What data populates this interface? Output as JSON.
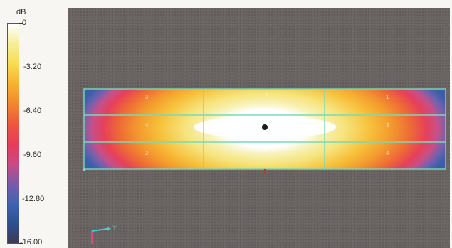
{
  "legend": {
    "unit": "dB",
    "ticks": [
      "0",
      "-3.20",
      "-6.40",
      "-9.60",
      "-12.80",
      "-16.00"
    ],
    "colors": [
      "#ffffff",
      "#f5ef99",
      "#f8dc52",
      "#f7b330",
      "#f28a2e",
      "#ee5a3b",
      "#e63c5a",
      "#c94a86",
      "#7a5ba8",
      "#3f64b3",
      "#2f4f8e",
      "#3c3b55"
    ]
  },
  "viewport": {
    "background": "#6a6463",
    "grid_color": "#7ad9b3",
    "zone_labels": [
      "3",
      "2",
      "1",
      "4",
      "3",
      "2",
      "1",
      "4"
    ],
    "axis_label": "Y"
  }
}
